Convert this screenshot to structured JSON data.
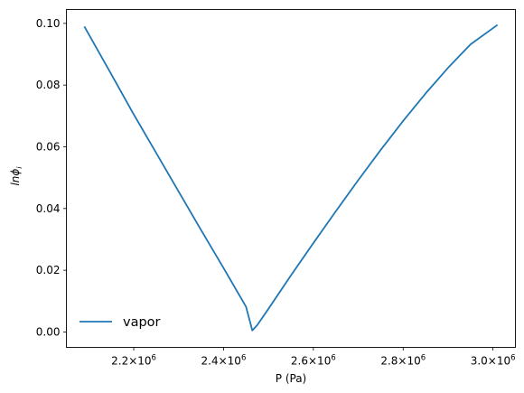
{
  "chart_data": {
    "type": "line",
    "xlabel": "P (Pa)",
    "ylabel_base": "ln",
    "ylabel_symbol": "ϕ",
    "ylabel_subscript": "i",
    "xlim": [
      2050000,
      3050000
    ],
    "ylim": [
      -0.005,
      0.1045
    ],
    "xticks": [
      {
        "value": 2200000,
        "mantissa": "2.2",
        "base": "10",
        "exp": "6"
      },
      {
        "value": 2400000,
        "mantissa": "2.4",
        "base": "10",
        "exp": "6"
      },
      {
        "value": 2600000,
        "mantissa": "2.6",
        "base": "10",
        "exp": "6"
      },
      {
        "value": 2800000,
        "mantissa": "2.8",
        "base": "10",
        "exp": "6"
      },
      {
        "value": 3000000,
        "mantissa": "3.0",
        "base": "10",
        "exp": "6"
      }
    ],
    "yticks": [
      {
        "value": 0.0,
        "label": "0.00"
      },
      {
        "value": 0.02,
        "label": "0.02"
      },
      {
        "value": 0.04,
        "label": "0.04"
      },
      {
        "value": 0.06,
        "label": "0.06"
      },
      {
        "value": 0.08,
        "label": "0.08"
      },
      {
        "value": 0.1,
        "label": "0.10"
      }
    ],
    "legend_position": "lower-left",
    "grid": false,
    "series": [
      {
        "name": "vapor",
        "color": "#1f77b4",
        "x": [
          2090000,
          2150000,
          2200000,
          2250000,
          2300000,
          2350000,
          2400000,
          2450000,
          2464000,
          2475000,
          2500000,
          2550000,
          2600000,
          2650000,
          2700000,
          2750000,
          2800000,
          2850000,
          2900000,
          2950000,
          3010000
        ],
        "y": [
          0.099,
          0.0835,
          0.0705,
          0.058,
          0.0455,
          0.033,
          0.0207,
          0.0082,
          0.0005,
          0.0022,
          0.0075,
          0.0183,
          0.0288,
          0.0391,
          0.0492,
          0.059,
          0.0684,
          0.0773,
          0.0856,
          0.0932,
          0.0995
        ]
      }
    ]
  }
}
